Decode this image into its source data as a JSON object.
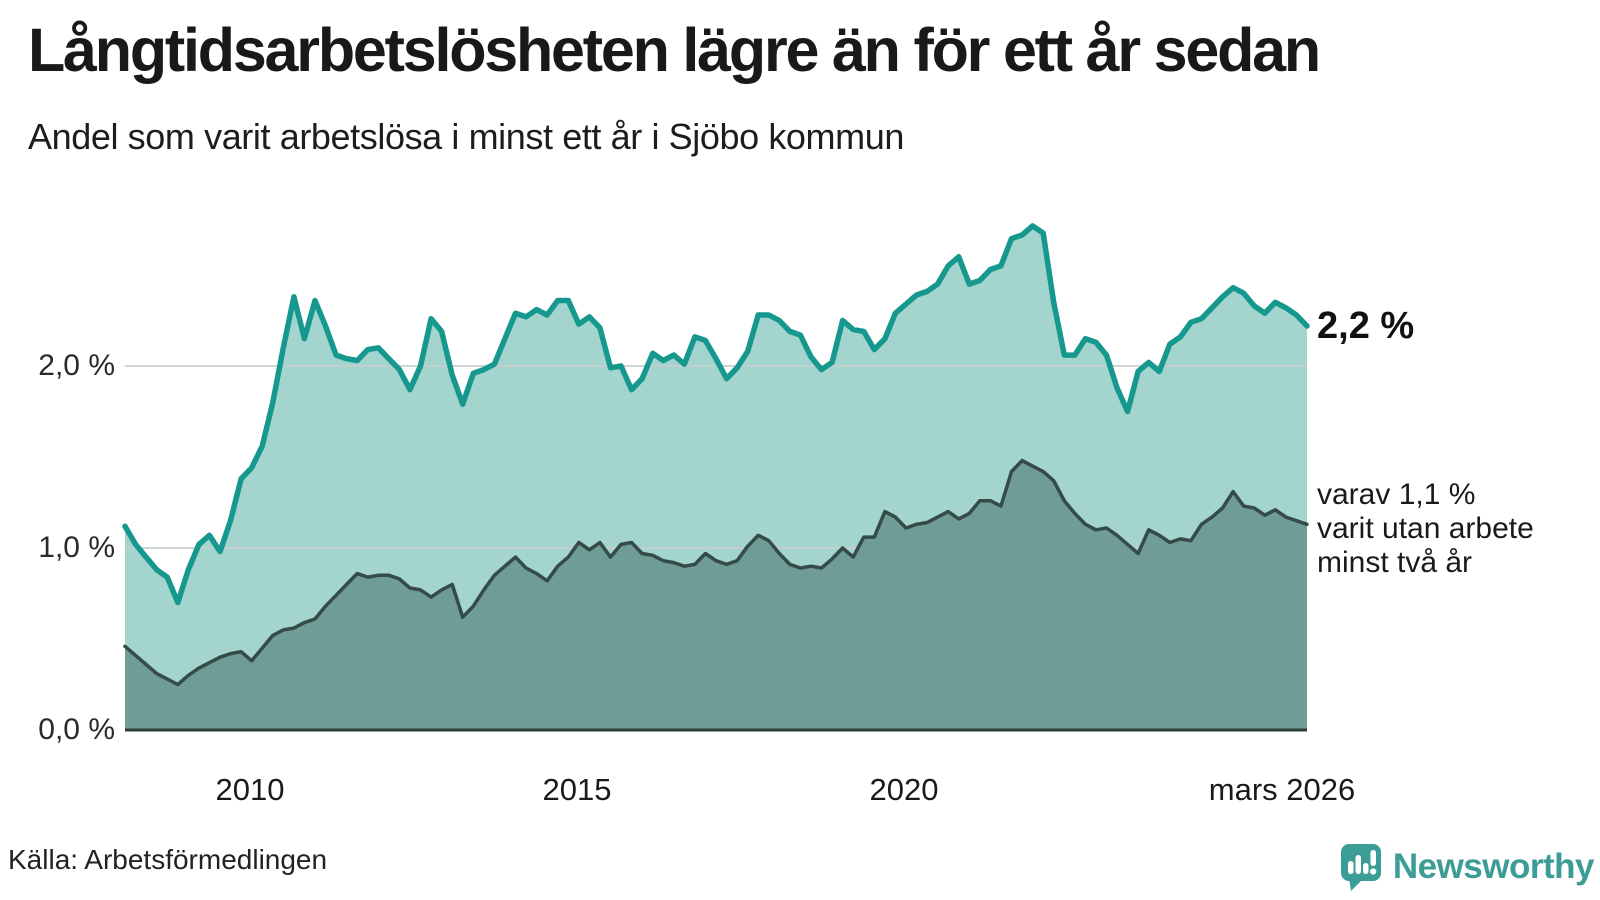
{
  "header": {
    "title": "Långtidsarbetslösheten lägre än för ett år sedan",
    "subtitle": "Andel som varit arbetslösa i minst ett år i Sjöbo kommun"
  },
  "annotations": {
    "latest_total_label": "2,2 %",
    "two_year_note": "varav 1,1 %\nvarit utan arbete\nminst två år"
  },
  "footer": {
    "source": "Källa: Arbetsförmedlingen",
    "brand_name": "Newsworthy"
  },
  "colors": {
    "line_total": "#16988e",
    "fill_total": "#a3d5ce",
    "line_two_year": "#354b47",
    "fill_two_year": "#6f9c96",
    "grid": "#c7cfce",
    "axis_baseline": "#2f3f3c",
    "brand_teal": "#3b9d96",
    "text": "#191919"
  },
  "chart_data": {
    "type": "area",
    "title": "Långtidsarbetslösheten lägre än för ett år sedan",
    "subtitle": "Andel som varit arbetslösa i minst ett år i Sjöbo kommun",
    "unit": "%",
    "grid": true,
    "legend_position": "right-annotations",
    "x_axis": {
      "start_year_fraction": 2008.08,
      "end_year_fraction": 2026.17,
      "ticks": [
        {
          "label": "2010",
          "year_fraction": 2010.0
        },
        {
          "label": "2015",
          "year_fraction": 2015.0
        },
        {
          "label": "2020",
          "year_fraction": 2020.0
        },
        {
          "label": "mars 2026",
          "year_fraction": 2026.17
        }
      ]
    },
    "y_axis": {
      "min": 0,
      "max_display": 2.95,
      "ticks": [
        {
          "label": "0,0 %",
          "value": 0.0
        },
        {
          "label": "1,0 %",
          "value": 1.0
        },
        {
          "label": "2,0 %",
          "value": 2.0
        }
      ]
    },
    "series": [
      {
        "name": "Andel arbetslösa minst ett år",
        "end_label": "2,2 %",
        "latest_value": 2.2,
        "values": [
          1.12,
          1.02,
          0.95,
          0.88,
          0.84,
          0.7,
          0.88,
          1.02,
          1.07,
          0.98,
          1.15,
          1.38,
          1.44,
          1.56,
          1.8,
          2.1,
          2.38,
          2.15,
          2.36,
          2.22,
          2.06,
          2.04,
          2.03,
          2.09,
          2.1,
          2.04,
          1.98,
          1.87,
          2.0,
          2.26,
          2.19,
          1.95,
          1.79,
          1.96,
          1.98,
          2.01,
          2.15,
          2.29,
          2.27,
          2.31,
          2.28,
          2.36,
          2.36,
          2.23,
          2.27,
          2.21,
          1.99,
          2.0,
          1.87,
          1.93,
          2.07,
          2.03,
          2.06,
          2.01,
          2.16,
          2.14,
          2.04,
          1.93,
          1.99,
          2.08,
          2.28,
          2.28,
          2.25,
          2.19,
          2.17,
          2.05,
          1.98,
          2.02,
          2.25,
          2.2,
          2.19,
          2.09,
          2.15,
          2.29,
          2.34,
          2.39,
          2.41,
          2.45,
          2.55,
          2.6,
          2.45,
          2.47,
          2.53,
          2.55,
          2.7,
          2.72,
          2.77,
          2.73,
          2.35,
          2.06,
          2.06,
          2.15,
          2.13,
          2.06,
          1.88,
          1.75,
          1.97,
          2.02,
          1.97,
          2.12,
          2.16,
          2.24,
          2.26,
          2.32,
          2.38,
          2.43,
          2.4,
          2.33,
          2.29,
          2.35,
          2.32,
          2.28,
          2.22
        ]
      },
      {
        "name": "Varav utan arbete minst två år",
        "end_label": "varav 1,1 % varit utan arbete minst två år",
        "latest_value": 1.1,
        "values": [
          0.46,
          0.41,
          0.36,
          0.31,
          0.28,
          0.25,
          0.3,
          0.34,
          0.37,
          0.4,
          0.42,
          0.43,
          0.38,
          0.45,
          0.52,
          0.55,
          0.56,
          0.59,
          0.61,
          0.68,
          0.74,
          0.8,
          0.86,
          0.84,
          0.85,
          0.85,
          0.83,
          0.78,
          0.77,
          0.73,
          0.77,
          0.8,
          0.62,
          0.68,
          0.77,
          0.85,
          0.9,
          0.95,
          0.89,
          0.86,
          0.82,
          0.9,
          0.95,
          1.03,
          0.99,
          1.03,
          0.95,
          1.02,
          1.03,
          0.97,
          0.96,
          0.93,
          0.92,
          0.9,
          0.91,
          0.97,
          0.93,
          0.91,
          0.93,
          1.01,
          1.07,
          1.04,
          0.97,
          0.91,
          0.89,
          0.9,
          0.89,
          0.94,
          1.0,
          0.95,
          1.06,
          1.06,
          1.2,
          1.17,
          1.11,
          1.13,
          1.14,
          1.17,
          1.2,
          1.16,
          1.19,
          1.26,
          1.26,
          1.23,
          1.42,
          1.48,
          1.45,
          1.42,
          1.37,
          1.26,
          1.19,
          1.13,
          1.1,
          1.11,
          1.07,
          1.02,
          0.97,
          1.1,
          1.07,
          1.03,
          1.05,
          1.04,
          1.13,
          1.17,
          1.22,
          1.31,
          1.23,
          1.22,
          1.18,
          1.21,
          1.17,
          1.15,
          1.13
        ]
      }
    ]
  }
}
